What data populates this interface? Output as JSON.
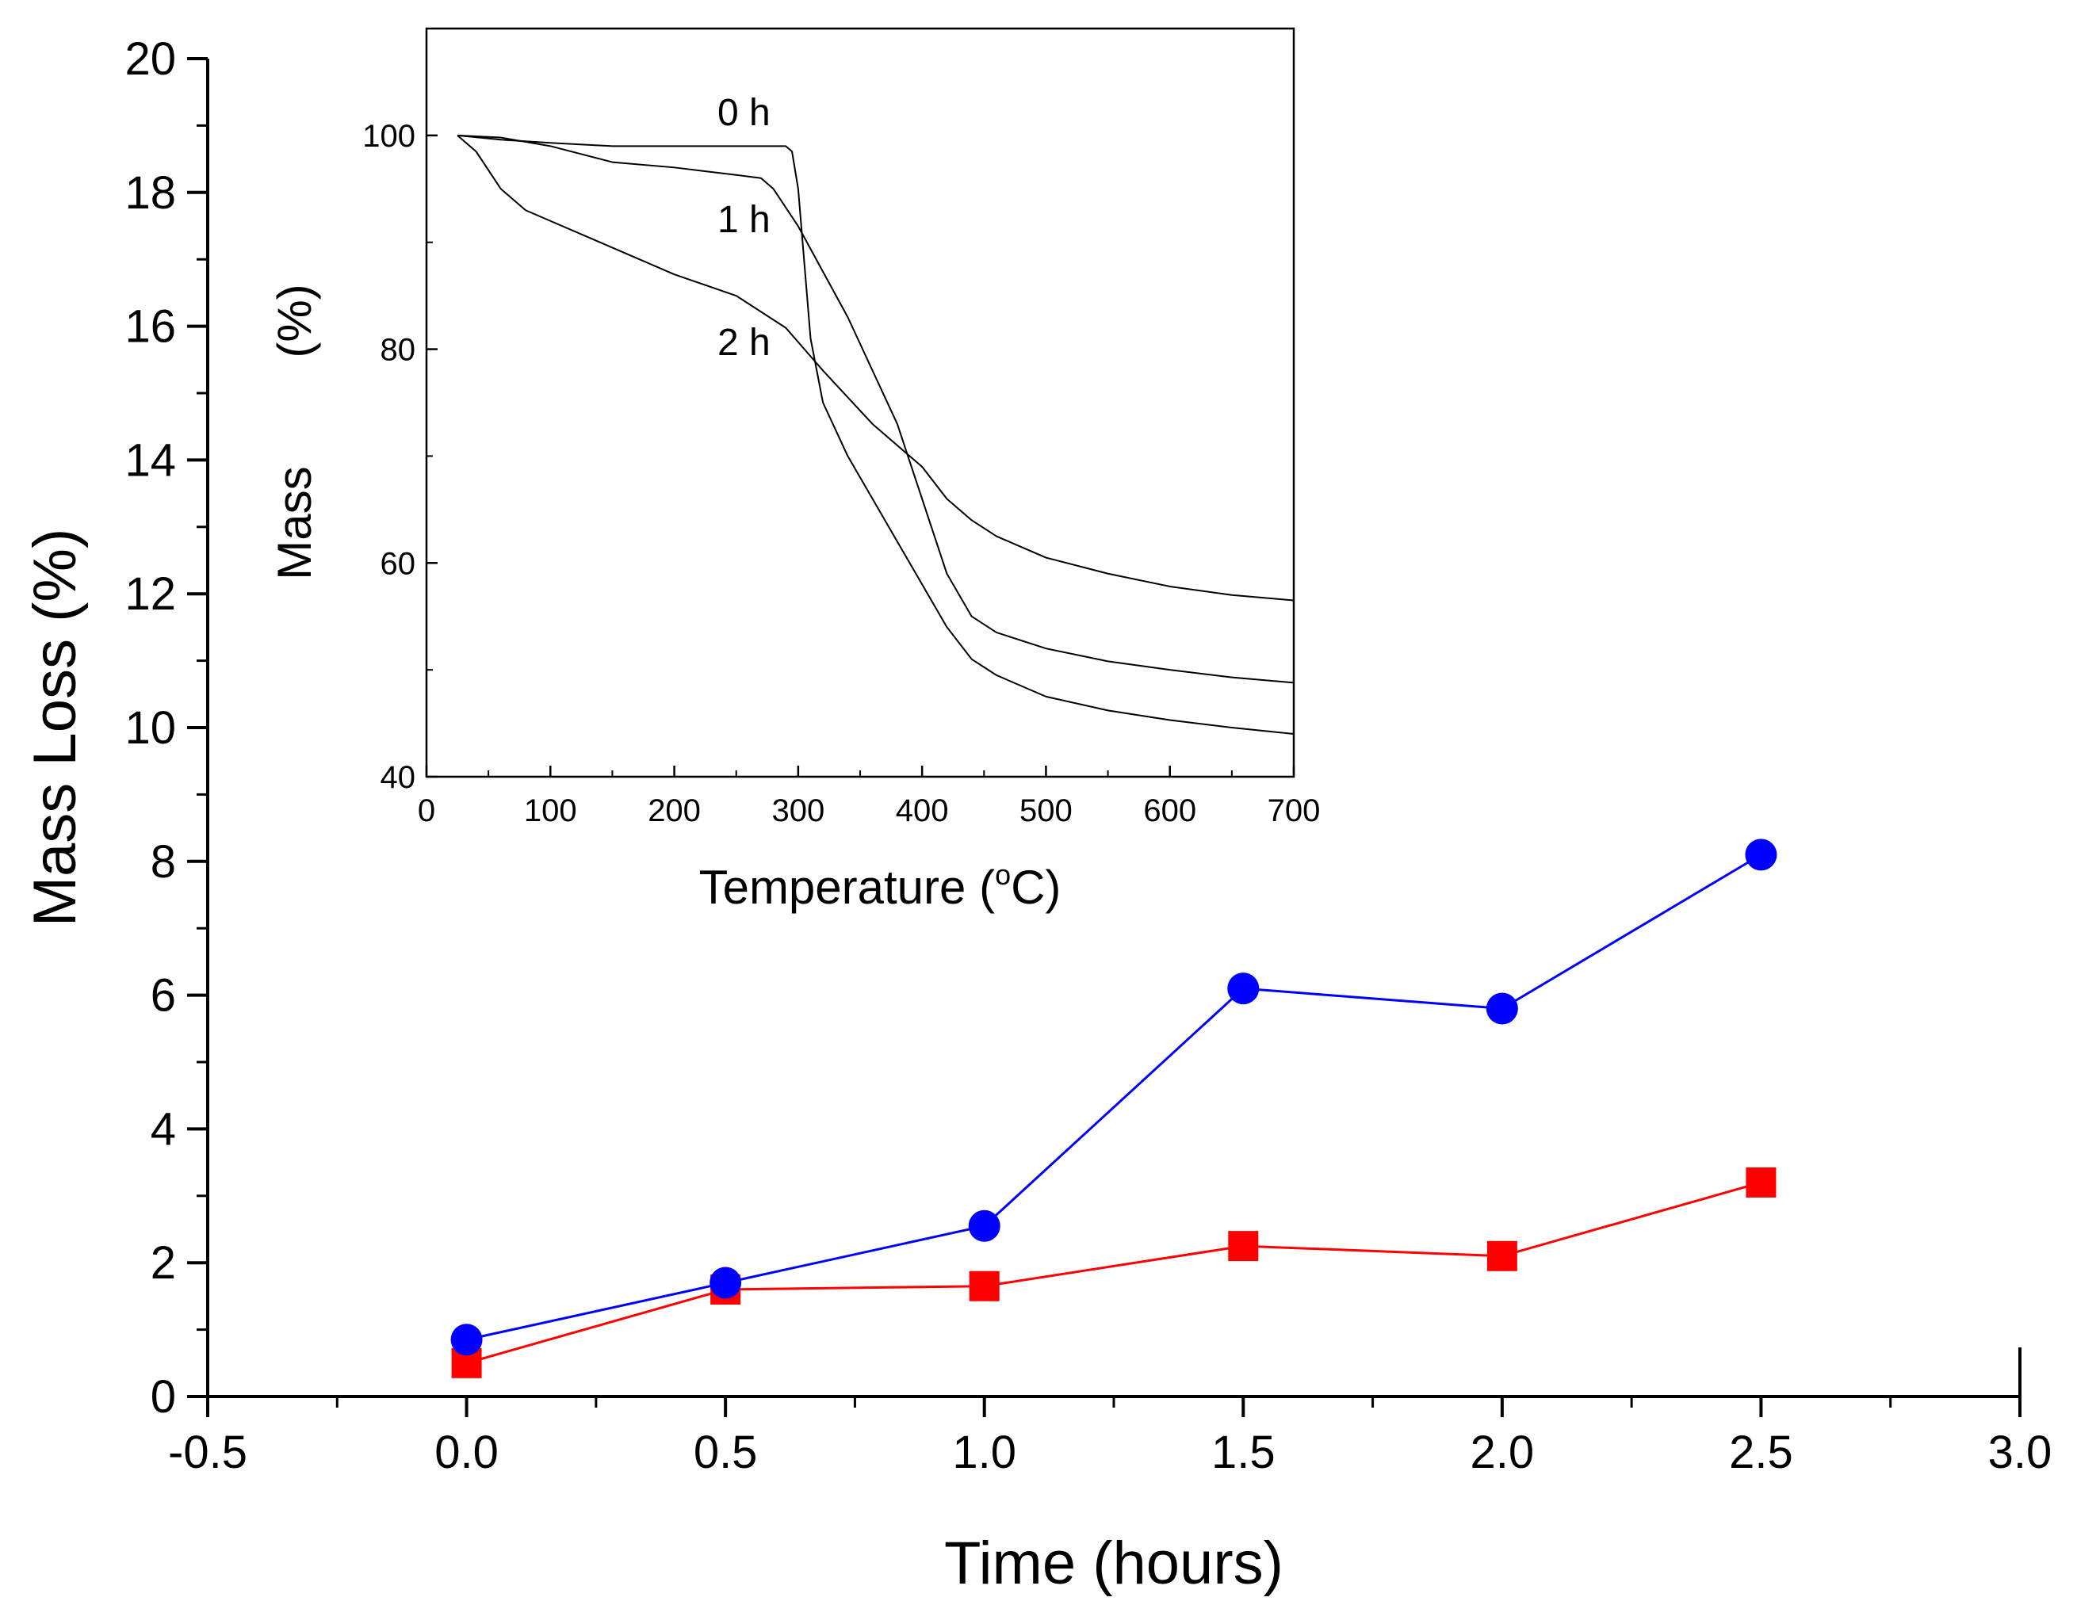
{
  "chart_data": [
    {
      "type": "line",
      "id": "main",
      "xlabel": "Time (hours)",
      "ylabel": "Mass Loss (%)",
      "xlim": [
        -0.5,
        3.0
      ],
      "ylim": [
        0,
        20
      ],
      "xticks": [
        "-0.5",
        "0.0",
        "0.5",
        "1.0",
        "1.5",
        "2.0",
        "2.5",
        "3.0"
      ],
      "yticks": [
        "0",
        "2",
        "4",
        "6",
        "8",
        "10",
        "12",
        "14",
        "16",
        "18",
        "20"
      ],
      "grid": false,
      "legend": "none",
      "series": [
        {
          "name": "blue circles",
          "color": "#0000ff",
          "marker": "circle",
          "x": [
            0.0,
            0.5,
            1.0,
            1.5,
            2.0,
            2.5
          ],
          "y": [
            0.85,
            1.7,
            2.55,
            6.1,
            5.8,
            8.1
          ]
        },
        {
          "name": "red squares",
          "color": "#ff0000",
          "marker": "square",
          "x": [
            0.0,
            0.5,
            1.0,
            1.5,
            2.0,
            2.5
          ],
          "y": [
            0.5,
            1.6,
            1.65,
            2.25,
            2.1,
            3.2
          ]
        }
      ]
    },
    {
      "type": "line",
      "id": "inset",
      "xlabel_main": "Temperature (",
      "xlabel_sup": "o",
      "xlabel_end": "C)",
      "ylabel": "Mass",
      "ylabel_unit": "(%)",
      "xlim": [
        0,
        700
      ],
      "ylim": [
        40,
        110
      ],
      "xticks": [
        "0",
        "100",
        "200",
        "300",
        "400",
        "500",
        "600",
        "700"
      ],
      "yticks": [
        "40",
        "60",
        "80",
        "100"
      ],
      "grid": false,
      "series": [
        {
          "name": "0 h",
          "color": "#000000",
          "x": [
            25,
            60,
            100,
            150,
            200,
            250,
            280,
            290,
            295,
            300,
            305,
            310,
            320,
            340,
            360,
            380,
            400,
            420,
            440,
            460,
            500,
            550,
            600,
            650,
            700
          ],
          "y": [
            100,
            99.6,
            99.3,
            99,
            99,
            99,
            99,
            99,
            98.5,
            95,
            88,
            81,
            75,
            70,
            66,
            62,
            58,
            54,
            51,
            49.5,
            47.5,
            46.2,
            45.3,
            44.6,
            44
          ]
        },
        {
          "name": "1 h",
          "color": "#000000",
          "x": [
            25,
            60,
            100,
            150,
            200,
            250,
            270,
            280,
            300,
            340,
            380,
            400,
            420,
            440,
            460,
            500,
            550,
            600,
            650,
            700
          ],
          "y": [
            100,
            99.8,
            99,
            97.5,
            97,
            96.3,
            96,
            95,
            91.5,
            83,
            73,
            66,
            59,
            55,
            53.5,
            52,
            50.8,
            50,
            49.3,
            48.8
          ]
        },
        {
          "name": "2 h",
          "color": "#000000",
          "x": [
            25,
            40,
            60,
            80,
            100,
            150,
            200,
            250,
            290,
            320,
            360,
            400,
            420,
            440,
            460,
            480,
            500,
            550,
            600,
            650,
            700
          ],
          "y": [
            100,
            98.5,
            95,
            93,
            92,
            89.5,
            87,
            85,
            82,
            78,
            73,
            69,
            66,
            64,
            62.5,
            61.5,
            60.5,
            59,
            57.8,
            57,
            56.5
          ]
        }
      ],
      "annotations": [
        "0 h",
        "1 h",
        "2 h"
      ]
    }
  ]
}
